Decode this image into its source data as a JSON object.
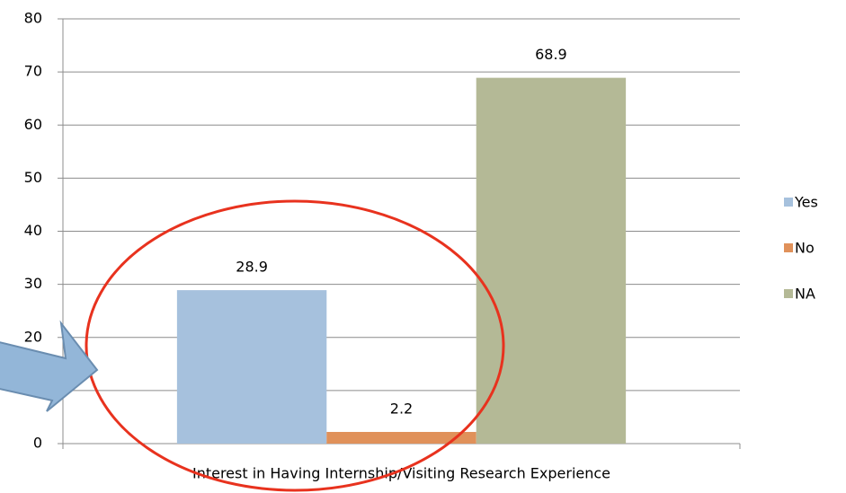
{
  "chart_data": {
    "type": "bar",
    "categories": [
      "Interest in Having Internship/Visiting Research Experience"
    ],
    "series": [
      {
        "name": "Yes",
        "color": "#a6c1dd",
        "values": [
          28.9
        ]
      },
      {
        "name": "No",
        "color": "#e0915a",
        "values": [
          2.2
        ]
      },
      {
        "name": "NA",
        "color": "#b4b996",
        "values": [
          68.9
        ]
      }
    ],
    "ylim": [
      0,
      80
    ],
    "yticks": [
      0,
      10,
      20,
      30,
      40,
      50,
      60,
      70,
      80
    ],
    "grid": true,
    "legend": "right"
  }
}
